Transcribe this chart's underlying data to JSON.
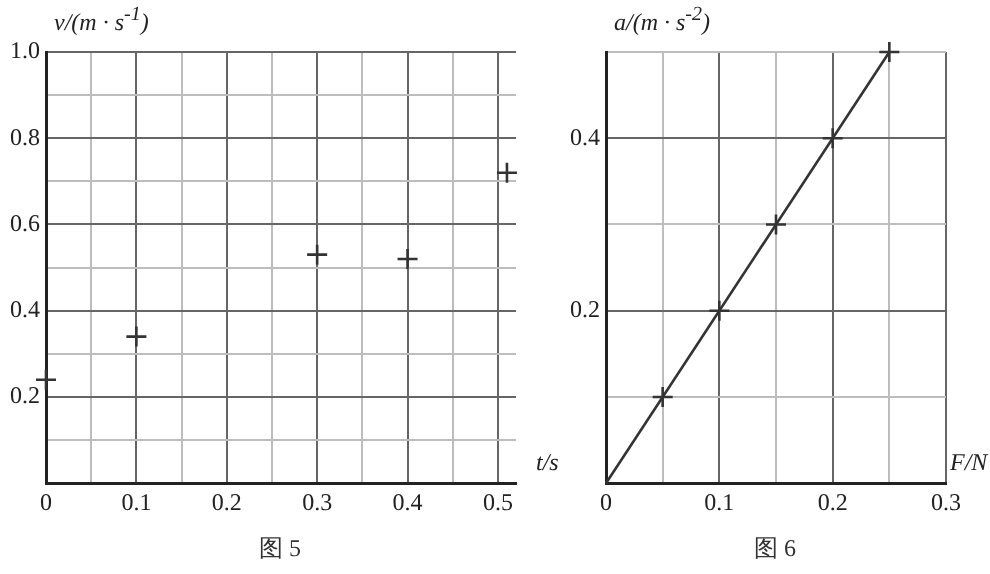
{
  "chart_data": [
    {
      "type": "scatter",
      "xlabel": "t/s",
      "ylabel": "v/(m · s$^{-1}$)",
      "annotations": [
        "图 5"
      ],
      "color": "#333333",
      "marker": "cross",
      "grid": true,
      "x": [
        0,
        0.1,
        0.3,
        0.4,
        0.51
      ],
      "values": [
        0.24,
        0.34,
        0.53,
        0.52,
        0.72
      ],
      "xlim": [
        0,
        0.52
      ],
      "ylim": [
        0,
        1
      ],
      "xticks": [
        0,
        {
          "value": 0.05,
          "label": null
        },
        0.1,
        {
          "value": 0.15,
          "label": null
        },
        0.2,
        {
          "value": 0.25,
          "label": null
        },
        0.3,
        {
          "value": 0.35,
          "label": null
        },
        0.4,
        {
          "value": 0.45,
          "label": null
        },
        0.5
      ],
      "yticks": [
        {
          "value": 0,
          "label": null
        },
        {
          "value": 0.1,
          "label": null
        },
        0.2,
        {
          "value": 0.3,
          "label": null
        },
        0.4,
        {
          "value": 0.5,
          "label": null
        },
        0.6,
        {
          "value": 0.7,
          "label": null
        },
        0.8,
        {
          "value": 0.9,
          "label": null
        },
        {
          "value": 1,
          "label": "1.0"
        }
      ]
    },
    {
      "type": "scatter",
      "xlabel": "F/N",
      "ylabel": "a/(m · s$^{-2}$)",
      "annotations": [
        "图 6"
      ],
      "grid": true,
      "series": [
        {
          "type": "scatter",
          "marker": "cross",
          "color": "#333333",
          "x": [
            0.05,
            0.1,
            0.15,
            0.2,
            0.25
          ],
          "values": [
            0.1,
            0.2,
            0.3,
            0.4,
            0.5
          ]
        },
        {
          "type": "line",
          "marker": "none",
          "color": "#333333",
          "x": [
            0,
            0.25
          ],
          "values": [
            0,
            0.5
          ]
        }
      ],
      "xlim": [
        0,
        0.3
      ],
      "ylim": [
        0,
        0.5
      ],
      "xticks": [
        0,
        {
          "value": 0.05,
          "label": null
        },
        0.1,
        {
          "value": 0.15,
          "label": null
        },
        0.2,
        {
          "value": 0.25,
          "label": null
        },
        0.3
      ],
      "yticks": [
        {
          "value": 0,
          "label": null
        },
        {
          "value": 0.1,
          "label": null
        },
        0.2,
        {
          "value": 0.3,
          "label": null
        },
        0.4,
        {
          "value": 0.5,
          "label": null
        }
      ]
    }
  ]
}
